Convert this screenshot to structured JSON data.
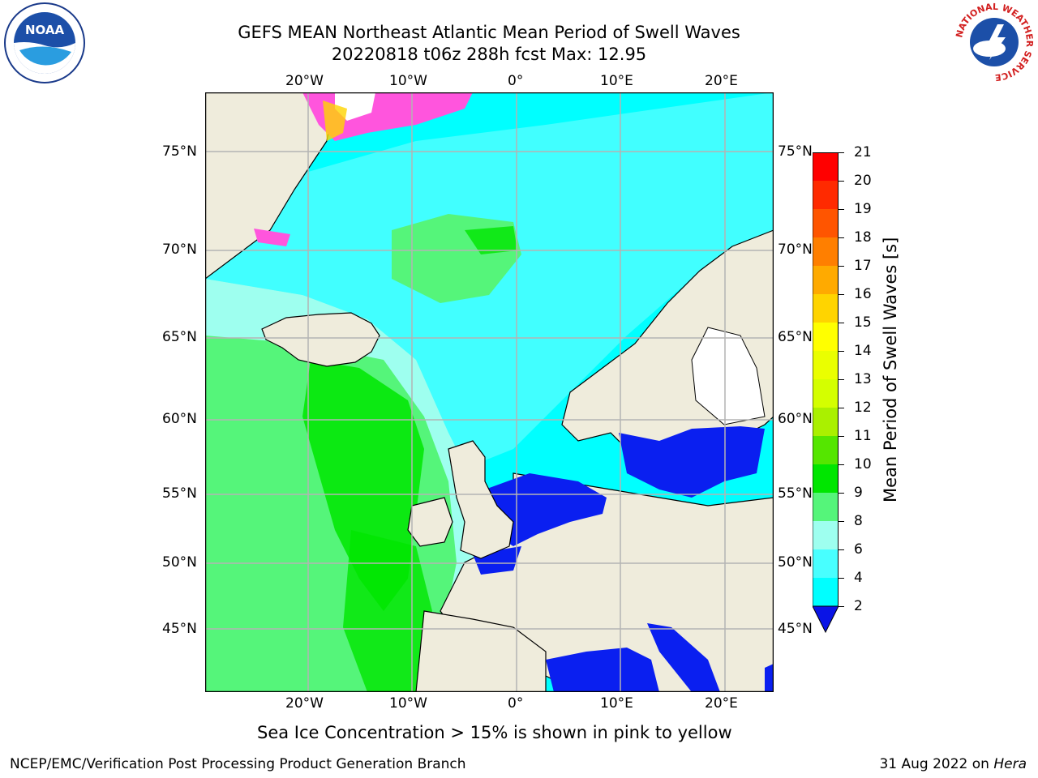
{
  "title": {
    "line1": "GEFS MEAN Northeast Atlantic Mean Period of Swell Waves",
    "line2": "20220818 t06z 288h fcst   Max: 12.95"
  },
  "map": {
    "lon_labels": [
      "20°W",
      "10°W",
      "0°",
      "10°E",
      "20°E"
    ],
    "lat_labels": [
      "75°N",
      "70°N",
      "65°N",
      "60°N",
      "55°N",
      "50°N",
      "45°N"
    ],
    "colors": {
      "land": "#efecdc",
      "cyan_4_6": "#00ffff",
      "cyan_6_8": "#48ffff",
      "aqua_8_9": "#9effef",
      "green_9_10": "#55f57a",
      "green_10_11": "#00e600",
      "blue_2_4": "#0a1ff0",
      "ice_pink": "#ff55dd",
      "grid": "#b4b4b4"
    }
  },
  "colorbar": {
    "label": "Mean Period of Swell Waves [s]",
    "ticks": [
      "21",
      "20",
      "19",
      "18",
      "17",
      "16",
      "15",
      "14",
      "13",
      "12",
      "11",
      "10",
      "9",
      "8",
      "6",
      "4",
      "2"
    ],
    "colors": [
      "#ff0000",
      "#ff2a00",
      "#ff5500",
      "#ff7f00",
      "#ffaa00",
      "#ffd400",
      "#ffff00",
      "#eaff00",
      "#d4ff00",
      "#aaf000",
      "#55e600",
      "#00e600",
      "#55f57a",
      "#9effef",
      "#48ffff",
      "#00ffff",
      "#0078ff",
      "#0a14e6"
    ]
  },
  "note": "Sea Ice Concentration > 15% is shown in pink to yellow",
  "footer": {
    "left": "NCEP/EMC/Verification Post Processing Product Generation Branch",
    "right_date": "31 Aug 2022 on ",
    "right_host": "Hera"
  },
  "logos": {
    "noaa_text": "NOAA",
    "nws_ring": "NATIONAL WEATHER SERVICE"
  }
}
